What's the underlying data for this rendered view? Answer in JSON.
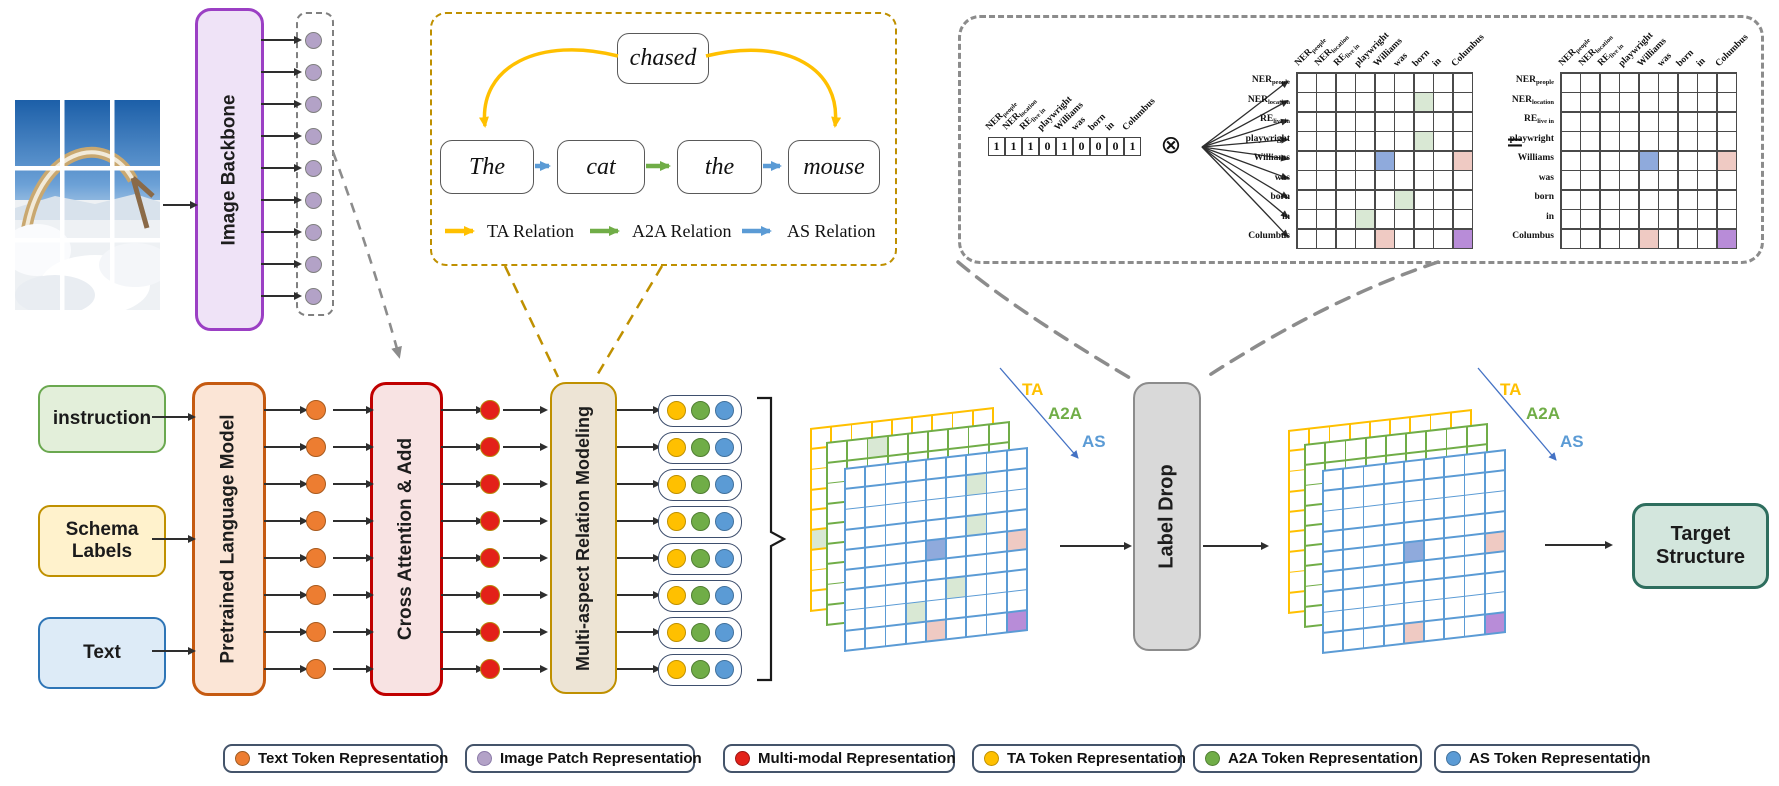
{
  "colors": {
    "ta": "#FFC000",
    "a2a": "#70AD47",
    "as": "#5B9BD5",
    "text_token": "#ED7D31",
    "image_patch": "#B3A2C7",
    "multimodal": "#E32119",
    "cell_green": "#D9E8D4",
    "cell_blue": "#8FAADC",
    "cell_pink": "#EFCAC3",
    "cell_purple": "#B88CD8"
  },
  "image_backbone": {
    "label": "Image Backbone"
  },
  "patches": {
    "count": 9
  },
  "relation_box": {
    "title_word": "chased",
    "words": [
      "The",
      "cat",
      "the",
      "mouse"
    ],
    "word_relations": [
      "as",
      "a2a",
      "as"
    ],
    "legend": [
      {
        "label": "TA Relation",
        "key": "ta"
      },
      {
        "label": "A2A Relation",
        "key": "a2a"
      },
      {
        "label": "AS Relation",
        "key": "as"
      }
    ]
  },
  "mask_section": {
    "labels": [
      {
        "m": "NER",
        "s": "people"
      },
      {
        "m": "NER",
        "s": "location"
      },
      {
        "m": "RE",
        "s": "live in"
      },
      {
        "m": "playwright",
        "s": ""
      },
      {
        "m": "Williams",
        "s": ""
      },
      {
        "m": "was",
        "s": ""
      },
      {
        "m": "born",
        "s": ""
      },
      {
        "m": "in",
        "s": ""
      },
      {
        "m": "Columbus",
        "s": ""
      }
    ],
    "vector": [
      1,
      1,
      1,
      0,
      1,
      0,
      0,
      0,
      1
    ],
    "otimes": "⊗",
    "equals": "=",
    "matrix_before": [
      [
        1,
        6,
        "g"
      ],
      [
        3,
        6,
        "g"
      ],
      [
        4,
        4,
        "b"
      ],
      [
        4,
        8,
        "p"
      ],
      [
        6,
        5,
        "g"
      ],
      [
        7,
        3,
        "g"
      ],
      [
        8,
        4,
        "p"
      ],
      [
        8,
        8,
        "v"
      ]
    ],
    "matrix_after": [
      [
        4,
        4,
        "b"
      ],
      [
        4,
        8,
        "p"
      ],
      [
        8,
        4,
        "p"
      ],
      [
        8,
        8,
        "v"
      ]
    ]
  },
  "pipeline": {
    "inputs": [
      {
        "label": "instruction",
        "fill": "#E3EFDA",
        "border": "#6AA84F"
      },
      {
        "label": "Schema Labels",
        "fill": "#FFF2CC",
        "border": "#BF9000"
      },
      {
        "label": "Text",
        "fill": "#DDEBF7",
        "border": "#2E75B6"
      }
    ],
    "plm": "Pretrained Language Model",
    "cross": "Cross Attention & Add",
    "marm": "Multi-aspect Relation Modeling",
    "rows": 8
  },
  "label_drop": "Label Drop",
  "target_structure": "Target Structure",
  "stack_labels": [
    {
      "label": "TA",
      "key": "ta"
    },
    {
      "label": "A2A",
      "key": "a2a"
    },
    {
      "label": "AS",
      "key": "as"
    }
  ],
  "grid_stacks": [
    {
      "yellow_cells": [
        [
          5,
          0,
          "g"
        ]
      ],
      "green_cells": [
        [
          0,
          2,
          "g"
        ]
      ],
      "blue_cells": [
        [
          1,
          6,
          "g"
        ],
        [
          3,
          6,
          "g"
        ],
        [
          4,
          4,
          "b"
        ],
        [
          4,
          8,
          "p"
        ],
        [
          6,
          5,
          "g"
        ],
        [
          7,
          3,
          "g"
        ],
        [
          8,
          4,
          "p"
        ],
        [
          8,
          8,
          "v"
        ]
      ]
    },
    {
      "yellow_cells": [],
      "green_cells": [],
      "blue_cells": [
        [
          4,
          4,
          "b"
        ],
        [
          4,
          8,
          "p"
        ],
        [
          8,
          4,
          "p"
        ],
        [
          8,
          8,
          "v"
        ]
      ]
    }
  ],
  "legend": [
    {
      "label": "Text Token Representation",
      "color": "#ED7D31",
      "edge": "#9C5A21"
    },
    {
      "label": "Image Patch Representation",
      "color": "#B3A2C7",
      "edge": "#8B7AA8"
    },
    {
      "label": "Multi-modal Representation",
      "color": "#E32119",
      "edge": "#9A1512"
    },
    {
      "label": "TA Token Representation",
      "color": "#FFC000",
      "edge": "#BF9000"
    },
    {
      "label": "A2A Token Representation",
      "color": "#70AD47",
      "edge": "#507E32"
    },
    {
      "label": "AS Token Representation",
      "color": "#5B9BD5",
      "edge": "#41719C"
    }
  ]
}
